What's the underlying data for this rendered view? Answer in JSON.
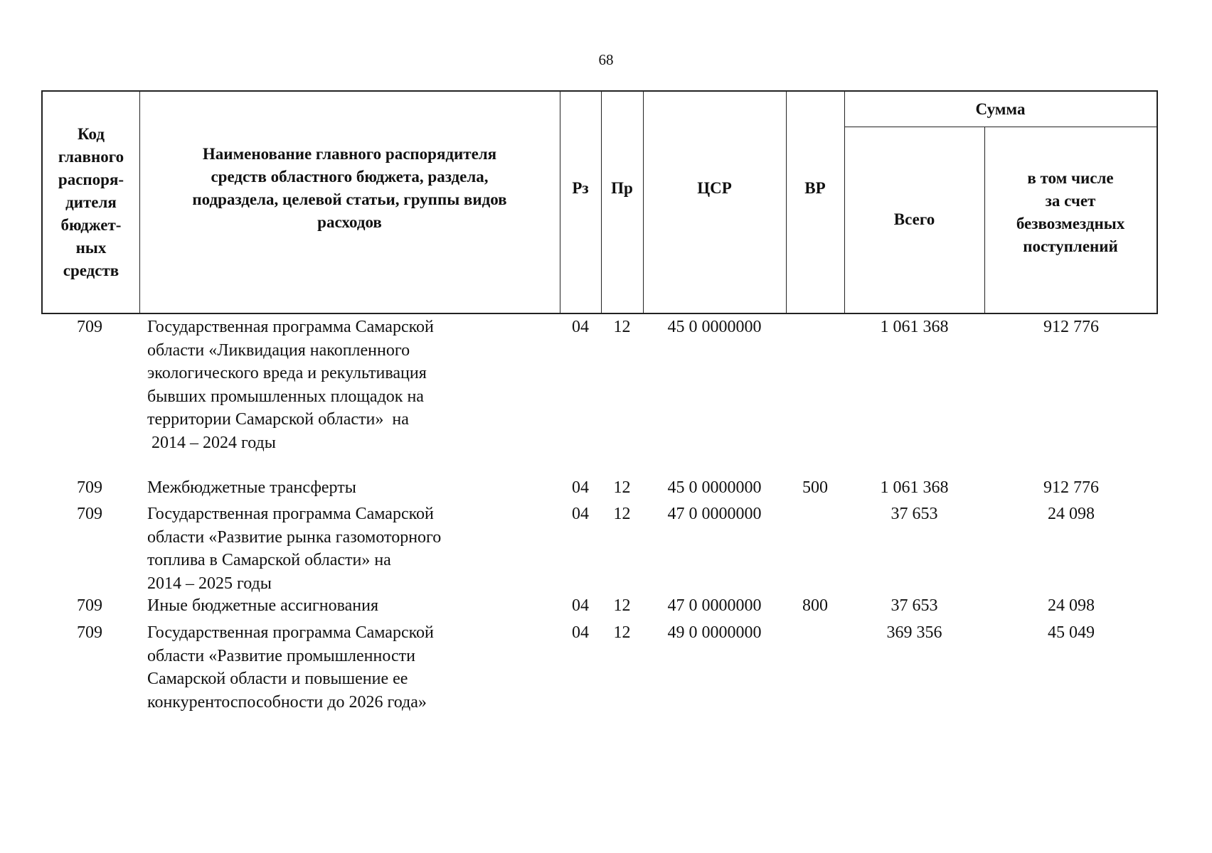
{
  "page_number": "68",
  "header": {
    "code": "Код главного распоря-дителя бюджет-ных средств",
    "code_lines": [
      "Код",
      "главного",
      "распоря-",
      "дителя",
      "бюджет-",
      "ных",
      "средств"
    ],
    "name_lines": [
      "Наименование главного распорядителя",
      "средств областного бюджета, раздела,",
      "подраздела, целевой статьи, группы видов",
      "расходов"
    ],
    "rz": "Рз",
    "pr": "Пр",
    "csr": "ЦСР",
    "vr": "ВР",
    "sum": "Сумма",
    "total": "Всего",
    "free_lines": [
      "в том числе",
      "за счет",
      "безвозмездных",
      "поступлений"
    ]
  },
  "rows": [
    {
      "code": "709",
      "name": [
        "Государственная программа Самарской",
        "области «Ликвидация накопленного",
        "экологического вреда и рекультивация",
        "бывших промышленных площадок на",
        "территории Самарской области»  на",
        " 2014 – 2024 годы"
      ],
      "rz": "04",
      "pr": "12",
      "csr": "45 0 0000000",
      "vr": "",
      "total": "1 061 368",
      "free": "912 776"
    },
    {
      "code": "709",
      "name": [
        "Межбюджетные трансферты"
      ],
      "rz": "04",
      "pr": "12",
      "csr": "45 0 0000000",
      "vr": "500",
      "total": "1 061 368",
      "free": "912 776"
    },
    {
      "code": "709",
      "name": [
        "Государственная программа Самарской",
        "области «Развитие рынка газомоторного",
        "топлива в Самарской области» на",
        "2014 – 2025 годы"
      ],
      "rz": "04",
      "pr": "12",
      "csr": "47 0 0000000",
      "vr": "",
      "total": "37 653",
      "free": "24 098"
    },
    {
      "code": "709",
      "name": [
        "Иные бюджетные ассигнования"
      ],
      "rz": "04",
      "pr": "12",
      "csr": "47 0 0000000",
      "vr": "800",
      "total": "37 653",
      "free": "24 098"
    },
    {
      "code": "709",
      "name": [
        "Государственная программа Самарской",
        "области «Развитие промышленности",
        "Самарской области и повышение ее",
        "конкурентоспособности до 2026 года»"
      ],
      "rz": "04",
      "pr": "12",
      "csr": "49 0 0000000",
      "vr": "",
      "total": "369 356",
      "free": "45 049"
    }
  ]
}
